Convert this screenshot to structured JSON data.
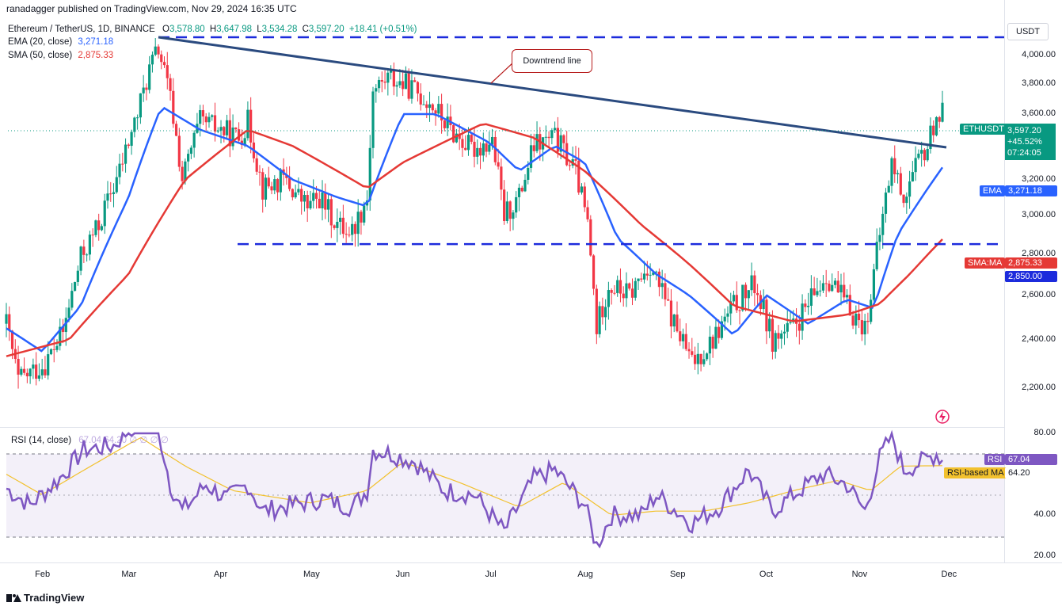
{
  "header": {
    "publisher": "ranadagger published on TradingView.com, Nov 29, 2024 16:35 UTC",
    "symbol": "Ethereum / TetherUS, 1D, BINANCE",
    "o_label": "O",
    "o": "3,578.80",
    "h_label": "H",
    "h": "3,647.98",
    "l_label": "L",
    "l": "3,534.28",
    "c_label": "C",
    "c": "3,597.20",
    "change": "+18.41 (+0.51%)",
    "ema_label": "EMA (20, close)",
    "ema_val": "3,271.18",
    "sma_label": "SMA (50, close)",
    "sma_val": "2,875.33",
    "currency": "USDT"
  },
  "footer": {
    "brand": "TradingView"
  },
  "annotation": {
    "text": "Downtrend line"
  },
  "tags": {
    "symbol": "ETHUSDT",
    "price": "3,597.20",
    "pct": "+45.52%",
    "timer": "07:24:05",
    "ema_name": "EMA",
    "ema_val": "3,271.18",
    "sma_name": "SMA:MA",
    "sma_val": "2,875.33",
    "level_val": "2,850.00",
    "rsi_name": "RSI",
    "rsi_val": "67.04",
    "rsima_name": "RSI-based MA",
    "rsima_val": "64.20"
  },
  "rsi_header": {
    "label": "RSI (14, close)",
    "values": "67.04  64.20  ∅ ∅ ∅ ∅"
  },
  "colors": {
    "up": "#089981",
    "down": "#f23645",
    "ema": "#2962ff",
    "sma": "#e53935",
    "trend": "#2a4a7f",
    "rsi": "#7e57c2",
    "rsima": "#f2c12e"
  },
  "chart_data": {
    "type": "candlestick",
    "x_ticks": [
      "Feb",
      "Mar",
      "Apr",
      "May",
      "Jun",
      "Jul",
      "Aug",
      "Sep",
      "Oct",
      "Nov",
      "Dec"
    ],
    "y_ticks": [
      "4,000.00",
      "3,800.00",
      "3,600.00",
      "3,400.00",
      "3,200.00",
      "3,000.00",
      "2,800.00",
      "2,600.00",
      "2,400.00",
      "2,200.00"
    ],
    "ylim": [
      2050,
      4120
    ],
    "rsi_ticks": [
      "80.00",
      "40.00",
      "20.00"
    ],
    "rsi_ylim": [
      15,
      85
    ],
    "resistance_level": 4090,
    "support_level": 2850,
    "downtrend_line": [
      {
        "x": "2024-03-11",
        "y": 4090
      },
      {
        "x": "2024-11-30",
        "y": 3500
      }
    ],
    "price_path": [
      {
        "x": "2024-01-20",
        "y": 2470
      },
      {
        "x": "2024-01-24",
        "y": 2230
      },
      {
        "x": "2024-02-02",
        "y": 2300
      },
      {
        "x": "2024-02-08",
        "y": 2430
      },
      {
        "x": "2024-02-14",
        "y": 2780
      },
      {
        "x": "2024-02-20",
        "y": 2950
      },
      {
        "x": "2024-02-27",
        "y": 3250
      },
      {
        "x": "2024-03-04",
        "y": 3600
      },
      {
        "x": "2024-03-08",
        "y": 3900
      },
      {
        "x": "2024-03-11",
        "y": 4050
      },
      {
        "x": "2024-03-15",
        "y": 3700
      },
      {
        "x": "2024-03-19",
        "y": 3200
      },
      {
        "x": "2024-03-25",
        "y": 3550
      },
      {
        "x": "2024-04-01",
        "y": 3500
      },
      {
        "x": "2024-04-07",
        "y": 3450
      },
      {
        "x": "2024-04-10",
        "y": 3550
      },
      {
        "x": "2024-04-15",
        "y": 3150
      },
      {
        "x": "2024-04-22",
        "y": 3200
      },
      {
        "x": "2024-04-30",
        "y": 3050
      },
      {
        "x": "2024-05-04",
        "y": 3100
      },
      {
        "x": "2024-05-10",
        "y": 2950
      },
      {
        "x": "2024-05-15",
        "y": 2920
      },
      {
        "x": "2024-05-20",
        "y": 3100
      },
      {
        "x": "2024-05-22",
        "y": 3750
      },
      {
        "x": "2024-05-27",
        "y": 3850
      },
      {
        "x": "2024-06-03",
        "y": 3780
      },
      {
        "x": "2024-06-10",
        "y": 3680
      },
      {
        "x": "2024-06-17",
        "y": 3500
      },
      {
        "x": "2024-06-24",
        "y": 3380
      },
      {
        "x": "2024-07-01",
        "y": 3430
      },
      {
        "x": "2024-07-05",
        "y": 3000
      },
      {
        "x": "2024-07-10",
        "y": 3100
      },
      {
        "x": "2024-07-15",
        "y": 3400
      },
      {
        "x": "2024-07-22",
        "y": 3450
      },
      {
        "x": "2024-07-29",
        "y": 3250
      },
      {
        "x": "2024-08-02",
        "y": 2950
      },
      {
        "x": "2024-08-05",
        "y": 2450
      },
      {
        "x": "2024-08-09",
        "y": 2650
      },
      {
        "x": "2024-08-16",
        "y": 2600
      },
      {
        "x": "2024-08-23",
        "y": 2750
      },
      {
        "x": "2024-08-30",
        "y": 2500
      },
      {
        "x": "2024-09-06",
        "y": 2300
      },
      {
        "x": "2024-09-13",
        "y": 2400
      },
      {
        "x": "2024-09-20",
        "y": 2550
      },
      {
        "x": "2024-09-27",
        "y": 2650
      },
      {
        "x": "2024-10-03",
        "y": 2400
      },
      {
        "x": "2024-10-10",
        "y": 2450
      },
      {
        "x": "2024-10-15",
        "y": 2550
      },
      {
        "x": "2024-10-21",
        "y": 2700
      },
      {
        "x": "2024-10-28",
        "y": 2550
      },
      {
        "x": "2024-11-03",
        "y": 2450
      },
      {
        "x": "2024-11-06",
        "y": 2700
      },
      {
        "x": "2024-11-12",
        "y": 3300
      },
      {
        "x": "2024-11-16",
        "y": 3100
      },
      {
        "x": "2024-11-21",
        "y": 3300
      },
      {
        "x": "2024-11-24",
        "y": 3400
      },
      {
        "x": "2024-11-27",
        "y": 3600
      },
      {
        "x": "2024-11-29",
        "y": 3597
      }
    ],
    "ema20": [
      {
        "x": "2024-01-20",
        "y": 2450
      },
      {
        "x": "2024-02-01",
        "y": 2350
      },
      {
        "x": "2024-02-14",
        "y": 2550
      },
      {
        "x": "2024-03-01",
        "y": 3100
      },
      {
        "x": "2024-03-12",
        "y": 3650
      },
      {
        "x": "2024-03-25",
        "y": 3500
      },
      {
        "x": "2024-04-10",
        "y": 3400
      },
      {
        "x": "2024-04-25",
        "y": 3200
      },
      {
        "x": "2024-05-10",
        "y": 3100
      },
      {
        "x": "2024-05-20",
        "y": 3050
      },
      {
        "x": "2024-06-01",
        "y": 3600
      },
      {
        "x": "2024-06-12",
        "y": 3600
      },
      {
        "x": "2024-06-30",
        "y": 3420
      },
      {
        "x": "2024-07-10",
        "y": 3250
      },
      {
        "x": "2024-07-22",
        "y": 3400
      },
      {
        "x": "2024-08-01",
        "y": 3300
      },
      {
        "x": "2024-08-12",
        "y": 2880
      },
      {
        "x": "2024-08-25",
        "y": 2700
      },
      {
        "x": "2024-09-05",
        "y": 2600
      },
      {
        "x": "2024-09-20",
        "y": 2420
      },
      {
        "x": "2024-10-01",
        "y": 2600
      },
      {
        "x": "2024-10-15",
        "y": 2470
      },
      {
        "x": "2024-10-28",
        "y": 2580
      },
      {
        "x": "2024-11-06",
        "y": 2540
      },
      {
        "x": "2024-11-14",
        "y": 2900
      },
      {
        "x": "2024-11-29",
        "y": 3271
      }
    ],
    "sma50": [
      {
        "x": "2024-01-20",
        "y": 2330
      },
      {
        "x": "2024-02-10",
        "y": 2400
      },
      {
        "x": "2024-03-01",
        "y": 2700
      },
      {
        "x": "2024-03-20",
        "y": 3200
      },
      {
        "x": "2024-04-10",
        "y": 3500
      },
      {
        "x": "2024-04-25",
        "y": 3400
      },
      {
        "x": "2024-05-20",
        "y": 3150
      },
      {
        "x": "2024-06-01",
        "y": 3300
      },
      {
        "x": "2024-06-28",
        "y": 3540
      },
      {
        "x": "2024-07-15",
        "y": 3450
      },
      {
        "x": "2024-08-01",
        "y": 3250
      },
      {
        "x": "2024-08-20",
        "y": 2950
      },
      {
        "x": "2024-09-05",
        "y": 2750
      },
      {
        "x": "2024-09-20",
        "y": 2550
      },
      {
        "x": "2024-10-10",
        "y": 2480
      },
      {
        "x": "2024-10-28",
        "y": 2510
      },
      {
        "x": "2024-11-08",
        "y": 2560
      },
      {
        "x": "2024-11-18",
        "y": 2700
      },
      {
        "x": "2024-11-29",
        "y": 2875
      }
    ],
    "rsi": [
      {
        "x": "2024-01-20",
        "y": 53
      },
      {
        "x": "2024-01-28",
        "y": 45
      },
      {
        "x": "2024-02-07",
        "y": 58
      },
      {
        "x": "2024-02-15",
        "y": 72
      },
      {
        "x": "2024-02-25",
        "y": 74
      },
      {
        "x": "2024-03-04",
        "y": 86
      },
      {
        "x": "2024-03-11",
        "y": 82
      },
      {
        "x": "2024-03-15",
        "y": 55
      },
      {
        "x": "2024-03-19",
        "y": 42
      },
      {
        "x": "2024-03-27",
        "y": 55
      },
      {
        "x": "2024-04-03",
        "y": 48
      },
      {
        "x": "2024-04-10",
        "y": 55
      },
      {
        "x": "2024-04-15",
        "y": 42
      },
      {
        "x": "2024-04-25",
        "y": 45
      },
      {
        "x": "2024-05-05",
        "y": 48
      },
      {
        "x": "2024-05-15",
        "y": 44
      },
      {
        "x": "2024-05-20",
        "y": 52
      },
      {
        "x": "2024-05-22",
        "y": 72
      },
      {
        "x": "2024-05-28",
        "y": 70
      },
      {
        "x": "2024-06-05",
        "y": 66
      },
      {
        "x": "2024-06-15",
        "y": 52
      },
      {
        "x": "2024-06-25",
        "y": 50
      },
      {
        "x": "2024-07-05",
        "y": 32
      },
      {
        "x": "2024-07-15",
        "y": 58
      },
      {
        "x": "2024-07-22",
        "y": 62
      },
      {
        "x": "2024-08-01",
        "y": 45
      },
      {
        "x": "2024-08-05",
        "y": 25
      },
      {
        "x": "2024-08-10",
        "y": 40
      },
      {
        "x": "2024-08-20",
        "y": 40
      },
      {
        "x": "2024-08-25",
        "y": 50
      },
      {
        "x": "2024-09-06",
        "y": 36
      },
      {
        "x": "2024-09-15",
        "y": 44
      },
      {
        "x": "2024-09-25",
        "y": 62
      },
      {
        "x": "2024-10-03",
        "y": 42
      },
      {
        "x": "2024-10-10",
        "y": 50
      },
      {
        "x": "2024-10-20",
        "y": 60
      },
      {
        "x": "2024-10-28",
        "y": 55
      },
      {
        "x": "2024-11-03",
        "y": 42
      },
      {
        "x": "2024-11-08",
        "y": 68
      },
      {
        "x": "2024-11-12",
        "y": 79
      },
      {
        "x": "2024-11-16",
        "y": 62
      },
      {
        "x": "2024-11-22",
        "y": 66
      },
      {
        "x": "2024-11-27",
        "y": 70
      },
      {
        "x": "2024-11-29",
        "y": 67.04
      }
    ],
    "rsi_ma": [
      {
        "x": "2024-01-20",
        "y": 60
      },
      {
        "x": "2024-02-01",
        "y": 50
      },
      {
        "x": "2024-02-15",
        "y": 62
      },
      {
        "x": "2024-03-05",
        "y": 78
      },
      {
        "x": "2024-03-20",
        "y": 64
      },
      {
        "x": "2024-04-05",
        "y": 52
      },
      {
        "x": "2024-05-01",
        "y": 46
      },
      {
        "x": "2024-05-20",
        "y": 52
      },
      {
        "x": "2024-06-01",
        "y": 66
      },
      {
        "x": "2024-06-20",
        "y": 56
      },
      {
        "x": "2024-07-10",
        "y": 44
      },
      {
        "x": "2024-07-25",
        "y": 56
      },
      {
        "x": "2024-08-10",
        "y": 40
      },
      {
        "x": "2024-08-25",
        "y": 42
      },
      {
        "x": "2024-09-10",
        "y": 42
      },
      {
        "x": "2024-09-25",
        "y": 46
      },
      {
        "x": "2024-10-10",
        "y": 52
      },
      {
        "x": "2024-10-25",
        "y": 57
      },
      {
        "x": "2024-11-05",
        "y": 52
      },
      {
        "x": "2024-11-15",
        "y": 64
      },
      {
        "x": "2024-11-29",
        "y": 64.2
      }
    ]
  }
}
